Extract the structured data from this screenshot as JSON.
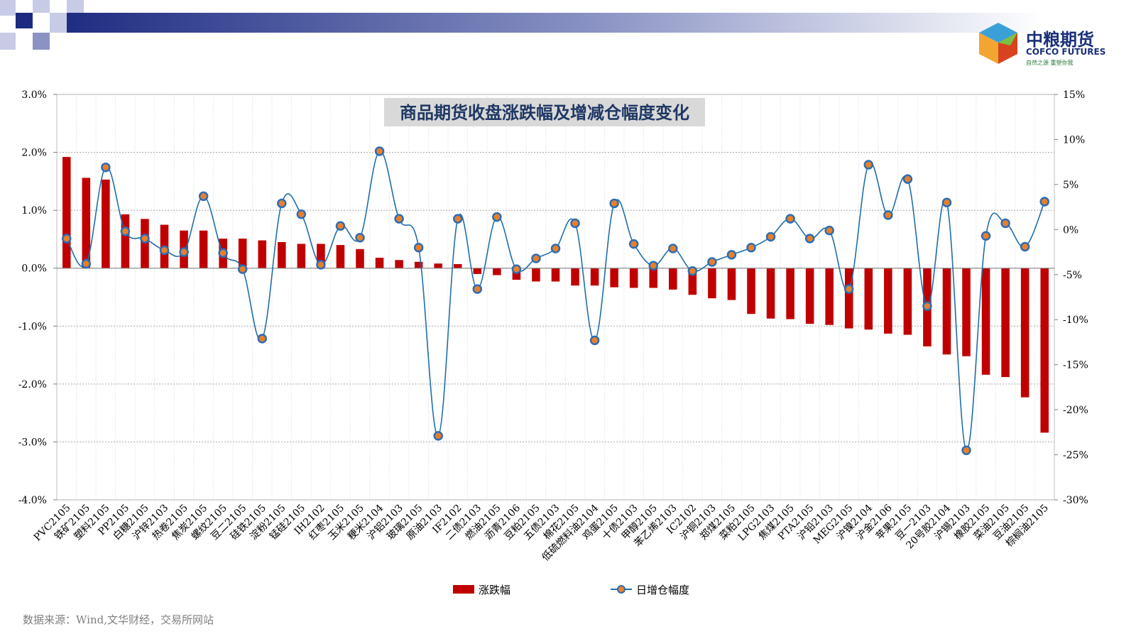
{
  "logo": {
    "name_cn": "中粮期货",
    "name_en": "COFCO FUTURES",
    "slogan": "自然之源 重塑你我"
  },
  "source": "数据来源：Wind,文华财经，交易所网站",
  "colors": {
    "bar": "#c00000",
    "line": "#1f6fa8",
    "marker_fill": "#e8802a",
    "marker_edge": "#2e6db4",
    "header": "#1c2a80"
  },
  "chart_data": {
    "type": "bar",
    "title": "商品期货收盘涨跌幅及增减仓幅度变化",
    "categories": [
      "PVC2105",
      "铁矿2105",
      "塑料2105",
      "PP2105",
      "白糖2105",
      "沪锌2103",
      "热卷2105",
      "焦炭2105",
      "螺纹2105",
      "豆二2105",
      "硅铁2105",
      "淀粉2105",
      "锰硅2105",
      "IH2102",
      "红枣2105",
      "玉米2105",
      "粳米2104",
      "沪铝2103",
      "玻璃2105",
      "原油2103",
      "IF2102",
      "二债2103",
      "燃油2105",
      "沥青2106",
      "豆粕2105",
      "五债2103",
      "棉花2105",
      "低硫燃料油2104",
      "鸡蛋2105",
      "十债2103",
      "甲醇2105",
      "苯乙烯2103",
      "IC2102",
      "沪铜2103",
      "郑煤2105",
      "菜粕2105",
      "LPG2103",
      "焦煤2105",
      "PTA2105",
      "沪铅2103",
      "MEG2105",
      "沪镍2104",
      "沪金2106",
      "苹果2105",
      "豆一2103",
      "20号胶2104",
      "沪锡2103",
      "橡胶2105",
      "菜油2105",
      "豆油2105",
      "棕榈油2105"
    ],
    "series": [
      {
        "name": "涨跌幅",
        "type": "bar",
        "axis": "left",
        "values": [
          1.92,
          1.56,
          1.53,
          0.93,
          0.85,
          0.75,
          0.65,
          0.65,
          0.51,
          0.51,
          0.48,
          0.45,
          0.42,
          0.42,
          0.4,
          0.33,
          0.18,
          0.14,
          0.11,
          0.08,
          0.07,
          -0.1,
          -0.12,
          -0.2,
          -0.23,
          -0.23,
          -0.3,
          -0.3,
          -0.33,
          -0.34,
          -0.34,
          -0.37,
          -0.46,
          -0.52,
          -0.55,
          -0.79,
          -0.87,
          -0.88,
          -0.96,
          -0.98,
          -1.04,
          -1.06,
          -1.13,
          -1.15,
          -1.35,
          -1.49,
          -1.52,
          -1.84,
          -1.88,
          -2.23,
          -2.84
        ]
      },
      {
        "name": "日增仓幅度",
        "type": "line",
        "axis": "right",
        "values": [
          -1.0,
          -3.8,
          6.9,
          -0.2,
          -1.0,
          -2.3,
          -2.5,
          3.7,
          -2.6,
          -4.4,
          -12.1,
          2.9,
          1.7,
          -3.9,
          0.4,
          -0.9,
          8.7,
          1.2,
          -2.0,
          -22.9,
          1.2,
          -6.6,
          1.4,
          -4.4,
          -3.2,
          -2.1,
          0.7,
          -12.3,
          2.9,
          -1.6,
          -4.0,
          -2.1,
          -4.6,
          -3.6,
          -2.8,
          -2.0,
          -0.8,
          1.2,
          -1.0,
          -0.1,
          -6.6,
          7.2,
          1.6,
          5.6,
          -8.5,
          3.0,
          -24.5,
          -0.7,
          0.7,
          -1.9,
          3.1
        ]
      }
    ],
    "ylim_left": [
      -4.0,
      3.0
    ],
    "yticks_left": [
      "3.0%",
      "2.0%",
      "1.0%",
      "0.0%",
      "-1.0%",
      "-2.0%",
      "-3.0%",
      "-4.0%"
    ],
    "ylim_right": [
      -30,
      15
    ],
    "yticks_right": [
      "15%",
      "10%",
      "5%",
      "0%",
      "-5%",
      "-10%",
      "-15%",
      "-20%",
      "-25%",
      "-30%"
    ],
    "grid": true,
    "legend_position": "bottom"
  }
}
